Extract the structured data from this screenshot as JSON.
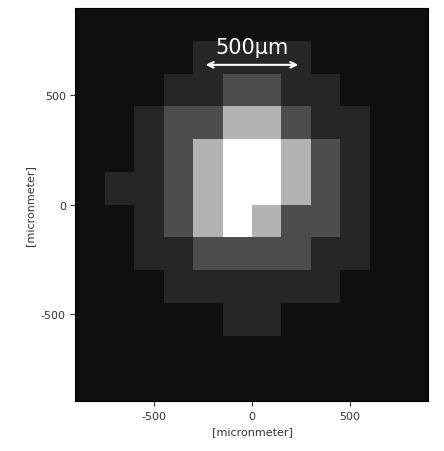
{
  "chart_data": {
    "type": "heatmap",
    "x_label": "[micronmeter]",
    "y_label": "[micronmeter]",
    "xlim": [
      -900,
      900
    ],
    "ylim": [
      -900,
      900
    ],
    "xticks": [
      -500,
      0,
      500
    ],
    "yticks": [
      -500,
      0,
      500
    ],
    "x_edges": [
      -900,
      -750,
      -600,
      -450,
      -300,
      -150,
      0,
      150,
      300,
      450,
      600,
      750,
      900
    ],
    "y_edges": [
      -900,
      -750,
      -600,
      -450,
      -300,
      -150,
      0,
      150,
      300,
      450,
      600,
      750,
      900
    ],
    "value_range": [
      0,
      1
    ],
    "cells": [
      [
        0.06,
        0.06,
        0.06,
        0.06,
        0.06,
        0.06,
        0.06,
        0.06,
        0.06,
        0.06,
        0.06,
        0.06
      ],
      [
        0.06,
        0.06,
        0.06,
        0.06,
        0.06,
        0.06,
        0.06,
        0.06,
        0.06,
        0.06,
        0.06,
        0.06
      ],
      [
        0.06,
        0.06,
        0.06,
        0.06,
        0.06,
        0.15,
        0.15,
        0.06,
        0.06,
        0.06,
        0.06,
        0.06
      ],
      [
        0.06,
        0.06,
        0.06,
        0.15,
        0.15,
        0.15,
        0.15,
        0.15,
        0.15,
        0.06,
        0.06,
        0.06
      ],
      [
        0.06,
        0.06,
        0.15,
        0.15,
        0.3,
        0.3,
        0.3,
        0.3,
        0.15,
        0.15,
        0.06,
        0.06
      ],
      [
        0.06,
        0.06,
        0.15,
        0.3,
        0.7,
        1,
        0.7,
        0.3,
        0.3,
        0.15,
        0.06,
        0.06
      ],
      [
        0.06,
        0.15,
        0.15,
        0.3,
        0.7,
        1,
        1,
        0.7,
        0.3,
        0.15,
        0.06,
        0.06
      ],
      [
        0.06,
        0.06,
        0.15,
        0.3,
        0.7,
        1,
        1,
        0.7,
        0.3,
        0.15,
        0.06,
        0.06
      ],
      [
        0.06,
        0.06,
        0.15,
        0.3,
        0.3,
        0.7,
        0.7,
        0.3,
        0.15,
        0.15,
        0.06,
        0.06
      ],
      [
        0.06,
        0.06,
        0.06,
        0.15,
        0.15,
        0.3,
        0.3,
        0.15,
        0.15,
        0.06,
        0.06,
        0.06
      ],
      [
        0.06,
        0.06,
        0.06,
        0.06,
        0.15,
        0.15,
        0.15,
        0.15,
        0.06,
        0.06,
        0.06,
        0.06
      ],
      [
        0.06,
        0.06,
        0.06,
        0.06,
        0.06,
        0.06,
        0.06,
        0.06,
        0.06,
        0.06,
        0.06,
        0.06
      ]
    ],
    "annotations": [
      {
        "text": "500µm",
        "x_from": -250,
        "x_to": 250,
        "y": 640
      }
    ]
  }
}
